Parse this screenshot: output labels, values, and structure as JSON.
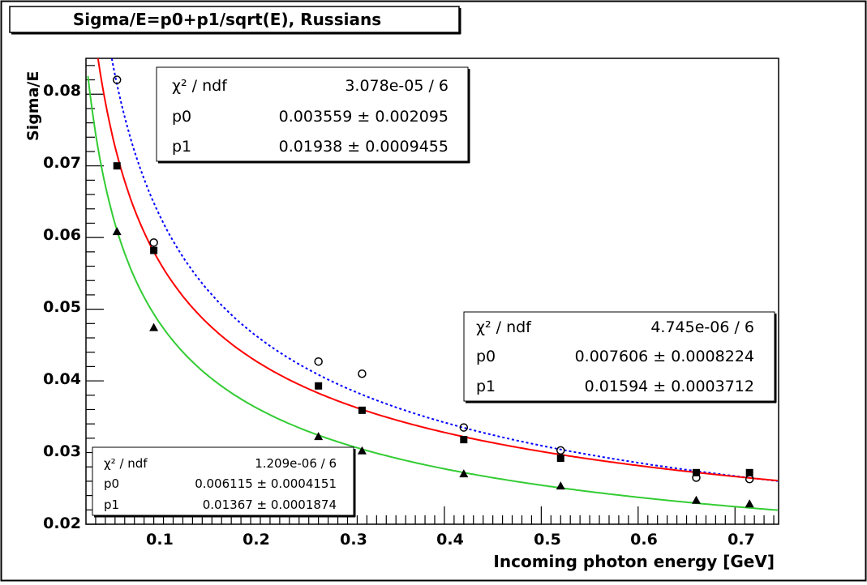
{
  "chart_data": {
    "type": "scatter",
    "title": "Sigma/E=p0+p1/sqrt(E), Russians",
    "xlabel": "Incoming photon energy [GeV]",
    "ylabel": "Sigma/E",
    "xlim": [
      0.03,
      0.745
    ],
    "ylim": [
      0.02,
      0.085
    ],
    "x_ticks": [
      "0.1",
      "0.2",
      "0.3",
      "0.4",
      "0.5",
      "0.6",
      "0.7"
    ],
    "y_ticks": [
      "0.02",
      "0.03",
      "0.04",
      "0.05",
      "0.06",
      "0.07",
      "0.08"
    ],
    "series": [
      {
        "name": "open-circles",
        "marker": "open-circle",
        "fit_style": "dotted",
        "color": "#0000ff",
        "x": [
          0.062,
          0.1,
          0.27,
          0.315,
          0.42,
          0.52,
          0.66,
          0.715
        ],
        "y": [
          0.082,
          0.0593,
          0.0427,
          0.041,
          0.0335,
          0.0303,
          0.0265,
          0.0263
        ],
        "fit": {
          "p0": 0.003559,
          "p1": 0.01938
        },
        "stats": {
          "chi2_label": "χ² / ndf",
          "chi2_value": "3.078e-05 / 6",
          "p0_label": "p0",
          "p0_value": "0.003559 ± 0.002095",
          "p1_label": "p1",
          "p1_value": "0.01938 ± 0.0009455"
        }
      },
      {
        "name": "filled-squares",
        "marker": "square",
        "fit_style": "solid",
        "color": "#ff0000",
        "x": [
          0.062,
          0.1,
          0.27,
          0.315,
          0.42,
          0.52,
          0.66,
          0.715
        ],
        "y": [
          0.07,
          0.0582,
          0.0393,
          0.0359,
          0.0318,
          0.0292,
          0.0272,
          0.0272
        ],
        "fit": {
          "p0": 0.007606,
          "p1": 0.01594
        },
        "stats": {
          "chi2_label": "χ² / ndf",
          "chi2_value": "4.745e-06 / 6",
          "p0_label": "p0",
          "p0_value": "0.007606 ± 0.0008224",
          "p1_label": "p1",
          "p1_value": "0.01594 ± 0.0003712"
        }
      },
      {
        "name": "filled-triangles",
        "marker": "triangle",
        "fit_style": "solid",
        "color": "#33cc33",
        "x": [
          0.062,
          0.1,
          0.27,
          0.315,
          0.42,
          0.52,
          0.66,
          0.715
        ],
        "y": [
          0.0608,
          0.0474,
          0.0322,
          0.0302,
          0.027,
          0.0253,
          0.0233,
          0.0228
        ],
        "fit": {
          "p0": 0.006115,
          "p1": 0.01367
        },
        "stats": {
          "chi2_label": "χ² / ndf",
          "chi2_value": "1.209e-06 / 6",
          "p0_label": "p0",
          "p0_value": "0.006115 ± 0.0004151",
          "p1_label": "p1",
          "p1_value": "0.01367 ± 0.0001874"
        }
      }
    ]
  }
}
